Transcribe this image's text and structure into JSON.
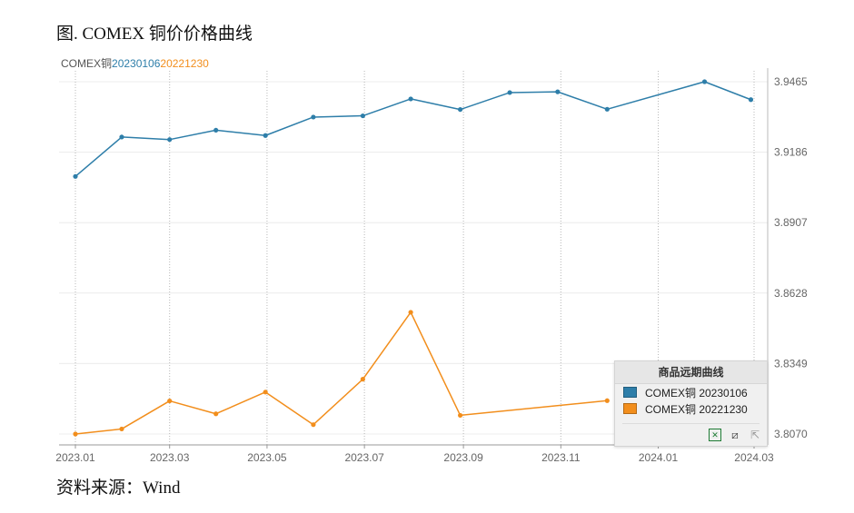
{
  "figure_title": "图. COMEX 铜价价格曲线",
  "source": "资料来源：Wind",
  "series_header": {
    "prefix": "COMEX铜",
    "series_a": "20230106",
    "series_b": "20221230"
  },
  "legend": {
    "title": "商品远期曲线",
    "items": [
      {
        "label": "COMEX铜 20230106",
        "color": "#2e7ea9"
      },
      {
        "label": "COMEX铜 20221230",
        "color": "#f28e1c"
      }
    ],
    "tools": [
      "excel-icon",
      "crop-icon",
      "select-icon"
    ]
  },
  "chart_data": {
    "type": "line",
    "x_ticks": [
      "2023.01",
      "2023.03",
      "2023.05",
      "2023.07",
      "2023.09",
      "2023.11",
      "2024.01",
      "2024.03"
    ],
    "y_ticks": [
      "3.9465",
      "3.9186",
      "3.8907",
      "3.8628",
      "3.8349",
      "3.8070"
    ],
    "ylim": [
      3.807,
      3.9465
    ],
    "grid": true,
    "series": [
      {
        "name": "COMEX铜 20230106",
        "color": "#2e7ea9",
        "points": [
          [
            "2023-01-01",
            3.909
          ],
          [
            "2023-01-30",
            3.9246
          ],
          [
            "2023-03-01",
            3.9236
          ],
          [
            "2023-03-30",
            3.9273
          ],
          [
            "2023-04-30",
            3.9252
          ],
          [
            "2023-05-30",
            3.9325
          ],
          [
            "2023-06-30",
            3.933
          ],
          [
            "2023-07-30",
            3.9397
          ],
          [
            "2023-08-30",
            3.9355
          ],
          [
            "2023-09-30",
            3.9422
          ],
          [
            "2023-10-30",
            3.9425
          ],
          [
            "2023-11-30",
            3.9356
          ],
          [
            "2024-01-30",
            3.9465
          ],
          [
            "2024-02-28",
            3.9394
          ]
        ]
      },
      {
        "name": "COMEX铜 20221230",
        "color": "#f28e1c",
        "points": [
          [
            "2023-01-01",
            3.807
          ],
          [
            "2023-01-30",
            3.809
          ],
          [
            "2023-03-01",
            3.8201
          ],
          [
            "2023-03-30",
            3.815
          ],
          [
            "2023-04-30",
            3.8236
          ],
          [
            "2023-05-30",
            3.8107
          ],
          [
            "2023-06-30",
            3.8287
          ],
          [
            "2023-07-30",
            3.8552
          ],
          [
            "2023-08-30",
            3.8144
          ],
          [
            "2023-11-30",
            3.8202
          ]
        ]
      }
    ]
  }
}
